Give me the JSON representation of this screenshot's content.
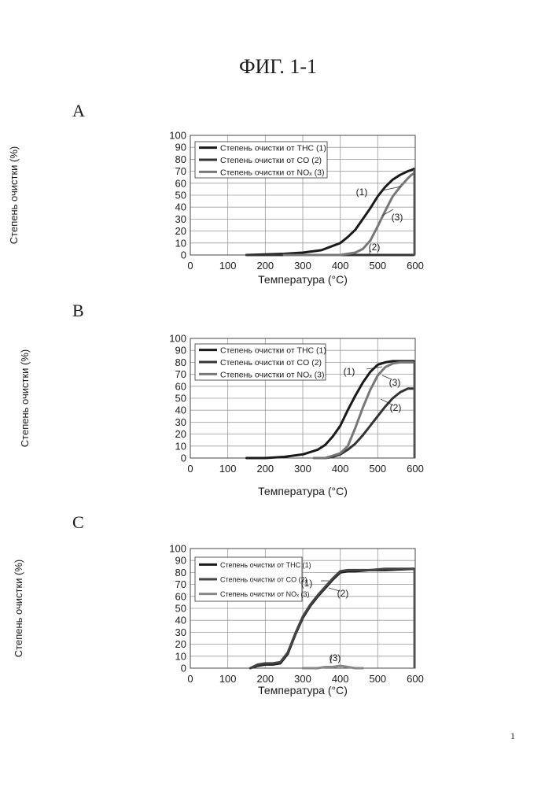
{
  "figure_title": "ФИГ. 1-1",
  "page_number": "1",
  "panels": [
    {
      "letter": "A"
    },
    {
      "letter": "B"
    },
    {
      "letter": "C"
    }
  ],
  "chart_data": [
    {
      "type": "line",
      "panel": "A",
      "xlabel": "Температура (°C)",
      "ylabel": "Степень очистки   (%)",
      "xlim": [
        0,
        600
      ],
      "ylim": [
        0,
        100
      ],
      "xticks": [
        "0",
        "100",
        "200",
        "300",
        "400",
        "500",
        "600"
      ],
      "yticks": [
        "0",
        "10",
        "20",
        "30",
        "40",
        "50",
        "60",
        "70",
        "80",
        "90",
        "100"
      ],
      "grid": true,
      "legend_position": "top-left",
      "series": [
        {
          "name": "Степень очистки от THC (1)",
          "color": "#1a1a1a",
          "x": [
            150,
            200,
            250,
            300,
            350,
            400,
            420,
            440,
            460,
            480,
            500,
            520,
            540,
            560,
            580,
            590,
            596
          ],
          "y": [
            0,
            0.5,
            1,
            2,
            4,
            10,
            15,
            21,
            30,
            39,
            49,
            57,
            63,
            67,
            70,
            71,
            72
          ]
        },
        {
          "name": "Степень очистки от CO (2)",
          "color": "#333333",
          "x": [
            150,
            300,
            470,
            500,
            550,
            590,
            596
          ],
          "y": [
            0,
            0,
            0,
            0,
            0,
            0,
            0
          ]
        },
        {
          "name": "Степень очистки от NOₓ (3)",
          "color": "#777777",
          "x": [
            250,
            400,
            420,
            440,
            460,
            480,
            500,
            520,
            540,
            560,
            580,
            590,
            596
          ],
          "y": [
            0,
            0,
            1,
            2,
            5,
            12,
            24,
            37,
            49,
            57,
            64,
            67,
            68
          ]
        }
      ],
      "annotations": [
        "(1)",
        "(2)",
        "(3)"
      ]
    },
    {
      "type": "line",
      "panel": "B",
      "xlabel": "Температура (°C)",
      "ylabel": "Степень очистки   (%)",
      "xlim": [
        0,
        600
      ],
      "ylim": [
        0,
        100
      ],
      "xticks": [
        "0",
        "100",
        "200",
        "300",
        "400",
        "500",
        "600"
      ],
      "yticks": [
        "0",
        "10",
        "20",
        "30",
        "40",
        "50",
        "60",
        "70",
        "80",
        "90",
        "100"
      ],
      "grid": true,
      "legend_position": "top-left",
      "series": [
        {
          "name": "Степень очистки от THC (1)",
          "color": "#1a1a1a",
          "x": [
            150,
            200,
            250,
            300,
            320,
            340,
            360,
            380,
            400,
            420,
            440,
            460,
            480,
            500,
            520,
            540,
            560,
            580,
            596
          ],
          "y": [
            0,
            0,
            1,
            3,
            5,
            7,
            11,
            18,
            27,
            40,
            52,
            63,
            72,
            78,
            80,
            81,
            81,
            81,
            81
          ]
        },
        {
          "name": "Степень очистки от CO (2)",
          "color": "#333333",
          "x": [
            330,
            360,
            380,
            400,
            420,
            440,
            460,
            480,
            500,
            520,
            540,
            560,
            580,
            596
          ],
          "y": [
            0,
            0,
            1,
            3,
            7,
            12,
            19,
            27,
            35,
            43,
            50,
            55,
            58,
            58
          ]
        },
        {
          "name": "Степень очистки от NOₓ (3)",
          "color": "#777777",
          "x": [
            330,
            360,
            380,
            400,
            420,
            440,
            460,
            480,
            500,
            520,
            540,
            560,
            580,
            596
          ],
          "y": [
            0,
            0,
            2,
            4,
            10,
            25,
            42,
            57,
            69,
            76,
            79,
            80,
            80,
            80
          ]
        }
      ],
      "annotations": [
        "(1)",
        "(2)",
        "(3)"
      ]
    },
    {
      "type": "line",
      "panel": "C",
      "xlabel": "Температура (°C)",
      "ylabel": "Степень очистки   (%)",
      "xlim": [
        0,
        600
      ],
      "ylim": [
        0,
        100
      ],
      "xticks": [
        "0",
        "100",
        "200",
        "300",
        "400",
        "500",
        "600"
      ],
      "yticks": [
        "0",
        "10",
        "20",
        "30",
        "40",
        "50",
        "60",
        "70",
        "80",
        "90",
        "100"
      ],
      "grid": true,
      "legend_position": "top-left",
      "series": [
        {
          "name": "Степень очистки от THC (1)",
          "color": "#1a1a1a",
          "x": [
            160,
            180,
            200,
            220,
            240,
            260,
            280,
            300,
            320,
            340,
            360,
            380,
            400,
            420,
            440,
            480,
            520,
            596
          ],
          "y": [
            0,
            2,
            3,
            3,
            4,
            12,
            28,
            42,
            52,
            60,
            67,
            74,
            80,
            81,
            81,
            82,
            82,
            83
          ]
        },
        {
          "name": "Степень очистки от CO (2)",
          "color": "#444444",
          "x": [
            160,
            180,
            200,
            220,
            240,
            260,
            280,
            300,
            320,
            340,
            360,
            380,
            400,
            420,
            440,
            480,
            520,
            596
          ],
          "y": [
            0,
            3,
            4,
            4,
            5,
            13,
            29,
            43,
            53,
            61,
            68,
            75,
            81,
            82,
            82,
            82,
            83,
            83
          ]
        },
        {
          "name": "Степень очистки от NOₓ (3)",
          "color": "#888888",
          "x": [
            300,
            340,
            360,
            380,
            400,
            420,
            440,
            460
          ],
          "y": [
            0,
            0,
            1,
            1,
            2,
            1,
            0,
            0
          ]
        }
      ],
      "annotations": [
        "(1)",
        "(2)",
        "(3)"
      ]
    }
  ]
}
